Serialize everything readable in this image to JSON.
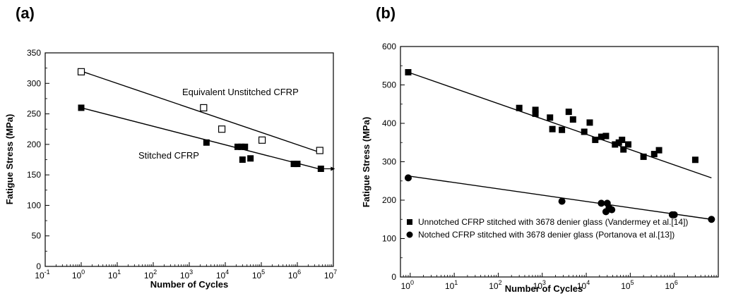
{
  "chart_data": [
    {
      "type": "scatter",
      "panel_label": "(a)",
      "xlabel": "Number of Cycles",
      "ylabel": "Fatigue Stress (MPa)",
      "xscale": "log",
      "xlim": [
        0.1,
        10000000
      ],
      "ylim": [
        0,
        350
      ],
      "x_tick_labels": [
        {
          "base": "10",
          "exp": "-1"
        },
        {
          "base": "10",
          "exp": "0"
        },
        {
          "base": "10",
          "exp": "1"
        },
        {
          "base": "10",
          "exp": "2"
        },
        {
          "base": "10",
          "exp": "3"
        },
        {
          "base": "10",
          "exp": "4"
        },
        {
          "base": "10",
          "exp": "5"
        },
        {
          "base": "10",
          "exp": "6"
        },
        {
          "base": "10",
          "exp": "7"
        }
      ],
      "y_tick_labels": [
        "0",
        "50",
        "100",
        "150",
        "200",
        "250",
        "300",
        "350"
      ],
      "annotations": [
        "Equivalent Unstitched CFRP",
        "Stitched CFRP"
      ],
      "series": [
        {
          "marker": "open-square",
          "color": "#000000",
          "x": [
            1,
            2500,
            8000,
            105000,
            4200000
          ],
          "y": [
            319,
            260,
            225,
            207,
            190
          ],
          "fit": {
            "x": [
              1,
              4200000
            ],
            "y": [
              320,
              187
            ]
          }
        },
        {
          "marker": "filled-square",
          "color": "#000000",
          "x": [
            1,
            3000,
            22000,
            28000,
            35000,
            50000,
            30000,
            800000,
            1000000,
            4500000
          ],
          "y": [
            260,
            203,
            196,
            196,
            196,
            177,
            175,
            168,
            168,
            160
          ],
          "fit": {
            "x": [
              1,
              4500000
            ],
            "y": [
              260,
              159
            ]
          },
          "runout_arrow": {
            "x": 4500000,
            "y": 160
          }
        }
      ]
    },
    {
      "type": "scatter",
      "panel_label": "(b)",
      "xlabel": "Number of Cycles",
      "ylabel": "Fatigue Stress (MPa)",
      "xscale": "log",
      "xlim": [
        0.6,
        10000000
      ],
      "ylim": [
        0,
        600
      ],
      "x_tick_labels": [
        {
          "base": "10",
          "exp": "0"
        },
        {
          "base": "10",
          "exp": "1"
        },
        {
          "base": "10",
          "exp": "2"
        },
        {
          "base": "10",
          "exp": "3"
        },
        {
          "base": "10",
          "exp": "4"
        },
        {
          "base": "10",
          "exp": "5"
        },
        {
          "base": "10",
          "exp": "6"
        }
      ],
      "y_tick_labels": [
        "0",
        "100",
        "200",
        "300",
        "400",
        "500",
        "600"
      ],
      "legend_position": "bottom-left",
      "series": [
        {
          "name": "Unnotched CFRP stitched with 3678 denier glass (Vandermey et al.[14])",
          "marker": "filled-square",
          "color": "#000000",
          "x": [
            0.9,
            300,
            700,
            700,
            1500,
            1700,
            2800,
            4000,
            5000,
            9000,
            12000,
            16000,
            22000,
            28000,
            45000,
            55000,
            65000,
            70000,
            90000,
            200000,
            350000,
            450000,
            3000000
          ],
          "y": [
            533,
            440,
            425,
            435,
            415,
            385,
            383,
            430,
            410,
            378,
            402,
            357,
            365,
            367,
            345,
            350,
            357,
            332,
            345,
            313,
            320,
            330,
            305
          ],
          "fit": {
            "x": [
              0.9,
              7000000
            ],
            "y": [
              533,
              258
            ]
          }
        },
        {
          "name": "Notched CFRP stitched with 3678 denier glass (Portanova et al.[13])",
          "marker": "filled-circle",
          "color": "#000000",
          "x": [
            0.9,
            2800,
            22000,
            28000,
            30000,
            33000,
            38000,
            900000,
            1000000,
            7000000
          ],
          "y": [
            258,
            197,
            192,
            170,
            192,
            180,
            175,
            162,
            162,
            150
          ],
          "fit": {
            "x": [
              0.9,
              7000000
            ],
            "y": [
              263,
              150
            ]
          }
        }
      ]
    }
  ]
}
